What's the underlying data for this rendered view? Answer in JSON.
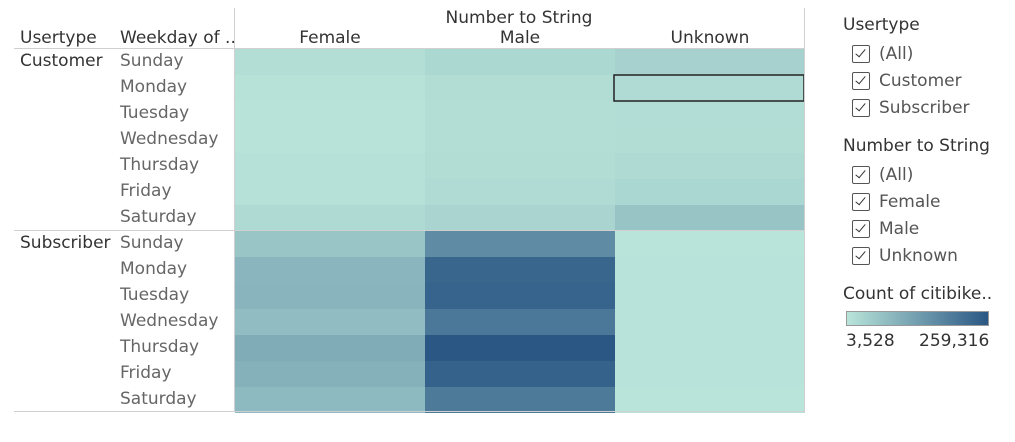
{
  "headers": {
    "usertype": "Usertype",
    "weekday": "Weekday of ..",
    "column_group": "Number to String"
  },
  "legend": {
    "usertype_title": "Usertype",
    "usertype_items": [
      "(All)",
      "Customer",
      "Subscriber"
    ],
    "gender_title": "Number to String",
    "gender_items": [
      "(All)",
      "Female",
      "Male",
      "Unknown"
    ],
    "color_title": "Count of citibike..",
    "color_min_label": "3,528",
    "color_max_label": "259,316",
    "color_low": "#b9e4da",
    "color_high": "#2a5784"
  },
  "chart_data": {
    "type": "heatmap",
    "columns": [
      "Female",
      "Male",
      "Unknown"
    ],
    "row_groups": [
      {
        "name": "Customer",
        "rows": [
          "Sunday",
          "Monday",
          "Tuesday",
          "Wednesday",
          "Thursday",
          "Friday",
          "Saturday"
        ]
      },
      {
        "name": "Subscriber",
        "rows": [
          "Sunday",
          "Monday",
          "Tuesday",
          "Wednesday",
          "Thursday",
          "Friday",
          "Saturday"
        ]
      }
    ],
    "values": [
      [
        14000,
        26000,
        38000
      ],
      [
        8000,
        17000,
        20000
      ],
      [
        6000,
        14000,
        16000
      ],
      [
        6000,
        14000,
        17000
      ],
      [
        9000,
        17000,
        22000
      ],
      [
        9000,
        20000,
        28000
      ],
      [
        22000,
        32000,
        62000
      ],
      [
        60000,
        165000,
        4000
      ],
      [
        88000,
        232000,
        4500
      ],
      [
        90000,
        236000,
        4500
      ],
      [
        76000,
        200000,
        4500
      ],
      [
        106000,
        259316,
        4500
      ],
      [
        96000,
        240000,
        4500
      ],
      [
        82000,
        196000,
        3528
      ]
    ],
    "color_range": [
      3528,
      259316
    ]
  }
}
